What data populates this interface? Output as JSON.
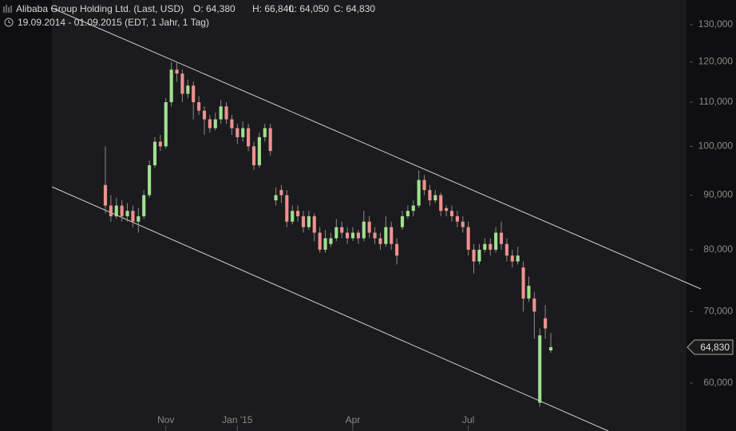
{
  "chart_data": {
    "type": "candlestick",
    "title": "Alibaba Group Holding Ltd. (Last, USD)",
    "ohlc_labels": [
      "O: 64,380",
      "H: 66,840",
      "L: 64,050",
      "C: 64,830"
    ],
    "subtitle": "19.09.2014 - 01.09.2015 (EDT, 1 Jahr, 1 Tag)",
    "categories": [
      null,
      null,
      null,
      null,
      null,
      null,
      null,
      null,
      null,
      null,
      null,
      "Nov",
      null,
      null,
      null,
      null,
      null,
      null,
      null,
      null,
      null,
      null,
      null,
      null,
      "Jan '15",
      null,
      null,
      null,
      null,
      null,
      null,
      null,
      null,
      null,
      null,
      null,
      null,
      null,
      null,
      null,
      null,
      null,
      null,
      null,
      null,
      "Apr",
      null,
      null,
      null,
      null,
      null,
      null,
      null,
      null,
      null,
      null,
      null,
      null,
      null,
      null,
      null,
      null,
      null,
      null,
      null,
      null,
      "Jul",
      null,
      null,
      null,
      null,
      null,
      null,
      null,
      null,
      null,
      null,
      null,
      null,
      null,
      null,
      null
    ],
    "open": [
      92000,
      88000,
      86000,
      88000,
      86000,
      87000,
      85000,
      86000,
      90000,
      96000,
      101000,
      100000,
      110000,
      118000,
      117000,
      112000,
      114000,
      110000,
      108000,
      106000,
      104000,
      106000,
      109000,
      106000,
      104000,
      102000,
      104000,
      100000,
      96000,
      102000,
      104000,
      89000,
      91000,
      90000,
      85000,
      87000,
      86000,
      84000,
      86000,
      83000,
      80000,
      81000,
      82000,
      84000,
      83000,
      82000,
      83000,
      82000,
      85000,
      83000,
      82000,
      81000,
      84000,
      81000,
      84000,
      86000,
      87000,
      88000,
      93000,
      91000,
      89000,
      90000,
      87500,
      87000,
      86000,
      85000,
      84000,
      80000,
      78000,
      80000,
      81000,
      80000,
      83000,
      81000,
      79000,
      78000,
      77000,
      72000,
      72000,
      57500,
      69000,
      64380
    ],
    "high": [
      100000,
      90000,
      89500,
      89000,
      88500,
      88000,
      87500,
      91000,
      97000,
      102000,
      102500,
      111000,
      120000,
      120000,
      118000,
      115500,
      115000,
      111500,
      109000,
      107000,
      107500,
      110500,
      110000,
      107000,
      105000,
      105500,
      105000,
      101000,
      103000,
      105000,
      105000,
      91500,
      92000,
      91000,
      88000,
      88000,
      87000,
      87000,
      86500,
      84000,
      83500,
      83000,
      85500,
      85000,
      84000,
      84000,
      83500,
      87000,
      86000,
      84000,
      83000,
      86000,
      85000,
      82000,
      87000,
      88000,
      89000,
      95000,
      94000,
      92000,
      91000,
      90500,
      88000,
      88000,
      87000,
      86000,
      85000,
      81000,
      81000,
      82000,
      82000,
      84000,
      85000,
      82000,
      80000,
      80500,
      78000,
      75500,
      73000,
      67500,
      71000,
      66840
    ],
    "low": [
      86500,
      85000,
      85500,
      85000,
      85000,
      84000,
      83000,
      85500,
      89500,
      95500,
      99000,
      99500,
      109000,
      115000,
      110000,
      111000,
      106000,
      107000,
      102500,
      103000,
      103500,
      105000,
      105000,
      102500,
      100500,
      101000,
      99000,
      95000,
      95500,
      101000,
      98000,
      88000,
      88500,
      84000,
      84500,
      85000,
      83000,
      83500,
      81500,
      79500,
      79500,
      80500,
      81500,
      82000,
      81000,
      81500,
      81000,
      81500,
      82000,
      81000,
      80000,
      80500,
      80000,
      77500,
      83500,
      85500,
      86000,
      87500,
      90000,
      88000,
      88500,
      86000,
      86000,
      85000,
      84000,
      83000,
      79000,
      76000,
      77500,
      79500,
      79000,
      79500,
      80000,
      78000,
      77000,
      77500,
      70000,
      71500,
      66000,
      57000,
      66000,
      64050
    ],
    "close": [
      88000,
      86000,
      88000,
      86000,
      87000,
      85000,
      86000,
      90000,
      96000,
      101000,
      100000,
      110000,
      118000,
      117000,
      112000,
      114000,
      110000,
      108000,
      106000,
      104000,
      106000,
      109000,
      106000,
      104000,
      102000,
      104000,
      100000,
      96000,
      102000,
      104000,
      99000,
      90000,
      90000,
      85000,
      87000,
      86000,
      84000,
      86000,
      83000,
      80000,
      82000,
      82000,
      84000,
      83000,
      82000,
      83000,
      82000,
      85000,
      83000,
      82000,
      81000,
      84000,
      81000,
      79000,
      86000,
      87000,
      88000,
      93000,
      91000,
      89000,
      90000,
      87000,
      87000,
      86000,
      85000,
      84000,
      80000,
      78000,
      80000,
      81000,
      80000,
      83000,
      81000,
      79000,
      78000,
      79000,
      72000,
      74000,
      70000,
      66500,
      67500,
      64830
    ],
    "up_color": "#9fe08f",
    "down_color": "#f09090",
    "log": true,
    "grid": false,
    "ylim": [
      54100,
      137140
    ],
    "yticks": [
      {
        "value": 60000,
        "label": "60,000"
      },
      {
        "value": 70000,
        "label": "70,000"
      },
      {
        "value": 80000,
        "label": "80,000"
      },
      {
        "value": 90000,
        "label": "90,000"
      },
      {
        "value": 100000,
        "label": "100,000"
      },
      {
        "value": 110000,
        "label": "110,000"
      },
      {
        "value": 120000,
        "label": "120,000"
      },
      {
        "value": 130000,
        "label": "130,000"
      }
    ],
    "last_price": {
      "value": 64830,
      "label": "64,830"
    }
  }
}
